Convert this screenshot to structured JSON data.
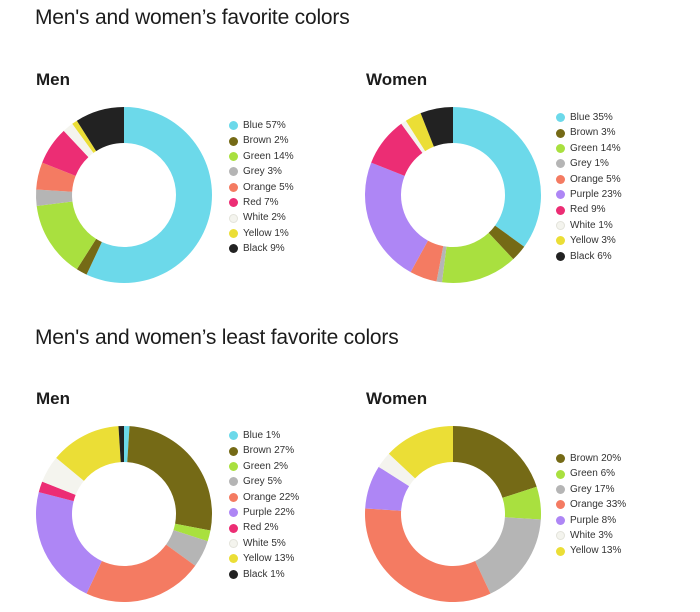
{
  "sections": {
    "favorite_title": "Men's and women’s favorite colors",
    "least_title": "Men's and women’s least favorite colors"
  },
  "colors": {
    "Blue": "#6cd9ea",
    "Brown": "#756a16",
    "Green": "#a9e03f",
    "Grey": "#b5b5b5",
    "Orange": "#f47b62",
    "Purple": "#ae86f5",
    "Red": "#ec2d74",
    "White": "#f4f4ee",
    "Yellow": "#ebde36",
    "Black": "#222222"
  },
  "chart_data": [
    {
      "type": "pie",
      "title": "Men",
      "group": "favorite",
      "slices": [
        {
          "label": "Blue",
          "value": 57,
          "legend": "Blue 57%"
        },
        {
          "label": "Brown",
          "value": 2,
          "legend": "Brown 2%"
        },
        {
          "label": "Green",
          "value": 14,
          "legend": "Green 14%"
        },
        {
          "label": "Grey",
          "value": 3,
          "legend": "Grey 3%"
        },
        {
          "label": "Orange",
          "value": 5,
          "legend": "Orange 5%"
        },
        {
          "label": "Red",
          "value": 7,
          "legend": "Red 7%"
        },
        {
          "label": "White",
          "value": 2,
          "legend": "White 2%"
        },
        {
          "label": "Yellow",
          "value": 1,
          "legend": "Yellow 1%"
        },
        {
          "label": "Black",
          "value": 9,
          "legend": "Black 9%"
        }
      ]
    },
    {
      "type": "pie",
      "title": "Women",
      "group": "favorite",
      "slices": [
        {
          "label": "Blue",
          "value": 35,
          "legend": "Blue 35%"
        },
        {
          "label": "Brown",
          "value": 3,
          "legend": "Brown 3%"
        },
        {
          "label": "Green",
          "value": 14,
          "legend": "Green 14%"
        },
        {
          "label": "Grey",
          "value": 1,
          "legend": "Grey 1%"
        },
        {
          "label": "Orange",
          "value": 5,
          "legend": "Orange 5%"
        },
        {
          "label": "Purple",
          "value": 23,
          "legend": "Purple 23%"
        },
        {
          "label": "Red",
          "value": 9,
          "legend": "Red 9%"
        },
        {
          "label": "White",
          "value": 1,
          "legend": "White 1%"
        },
        {
          "label": "Yellow",
          "value": 3,
          "legend": "Yellow 3%"
        },
        {
          "label": "Black",
          "value": 6,
          "legend": "Black 6%"
        }
      ]
    },
    {
      "type": "pie",
      "title": "Men",
      "group": "least",
      "slices": [
        {
          "label": "Blue",
          "value": 1,
          "legend": "Blue 1%"
        },
        {
          "label": "Brown",
          "value": 27,
          "legend": "Brown 27%"
        },
        {
          "label": "Green",
          "value": 2,
          "legend": "Green 2%"
        },
        {
          "label": "Grey",
          "value": 5,
          "legend": "Grey 5%"
        },
        {
          "label": "Orange",
          "value": 22,
          "legend": "Orange 22%"
        },
        {
          "label": "Purple",
          "value": 22,
          "legend": "Purple 22%"
        },
        {
          "label": "Red",
          "value": 2,
          "legend": "Red 2%"
        },
        {
          "label": "White",
          "value": 5,
          "legend": "White 5%"
        },
        {
          "label": "Yellow",
          "value": 13,
          "legend": "Yellow 13%"
        },
        {
          "label": "Black",
          "value": 1,
          "legend": "Black 1%"
        }
      ]
    },
    {
      "type": "pie",
      "title": "Women",
      "group": "least",
      "slices": [
        {
          "label": "Brown",
          "value": 20,
          "legend": "Brown 20%"
        },
        {
          "label": "Green",
          "value": 6,
          "legend": "Green 6%"
        },
        {
          "label": "Grey",
          "value": 17,
          "legend": "Grey 17%"
        },
        {
          "label": "Orange",
          "value": 33,
          "legend": "Orange 33%"
        },
        {
          "label": "Purple",
          "value": 8,
          "legend": "Purple 8%"
        },
        {
          "label": "White",
          "value": 3,
          "legend": "White 3%"
        },
        {
          "label": "Yellow",
          "value": 13,
          "legend": "Yellow 13%"
        }
      ]
    }
  ]
}
